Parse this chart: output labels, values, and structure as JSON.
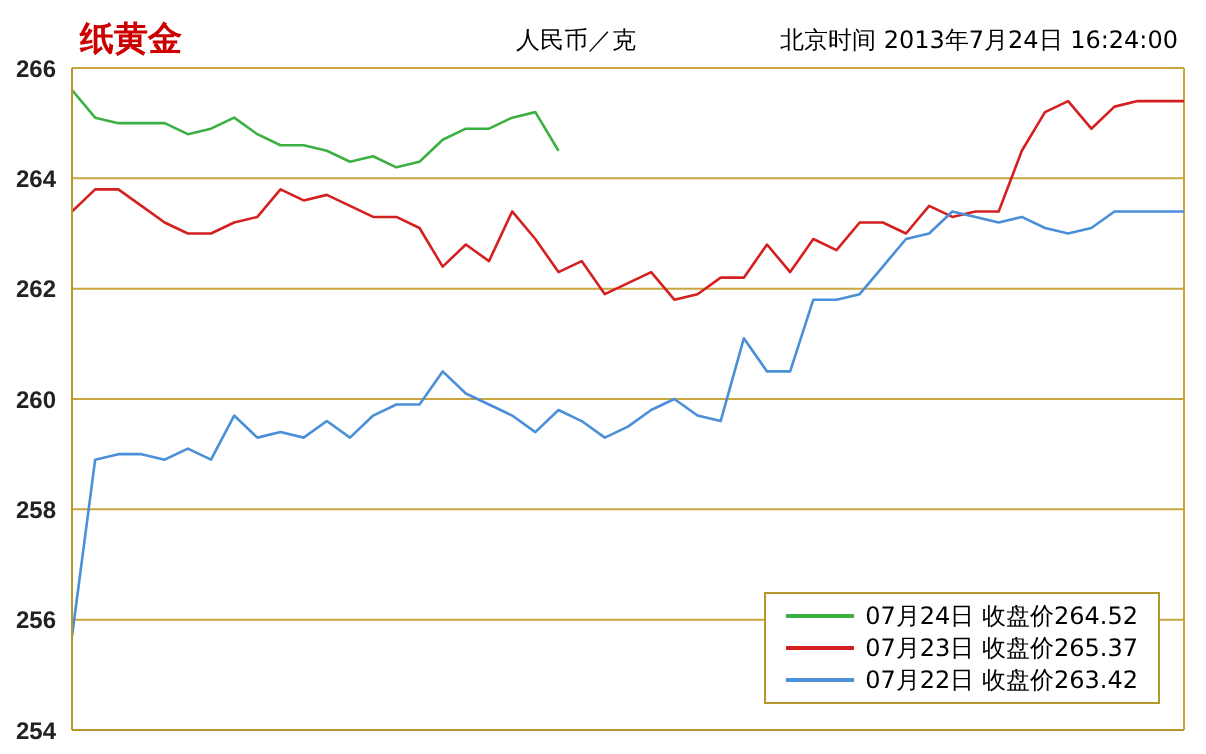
{
  "chart_data": {
    "type": "line",
    "title": "纸黄金",
    "ylabel": "人民币／克",
    "annotations": [
      "北京时间 2013年7月24日 16:24:00"
    ],
    "categories": [
      null,
      null,
      null,
      null,
      null,
      null,
      null,
      null,
      null,
      null,
      null,
      null,
      null,
      null,
      null,
      null,
      null,
      null,
      null,
      null,
      null,
      null,
      null,
      null,
      null,
      null,
      null,
      null,
      null,
      null,
      null,
      null,
      null,
      null,
      null,
      null,
      null,
      null,
      null,
      null,
      null,
      null,
      null,
      null,
      null,
      null,
      null,
      null,
      null
    ],
    "ylim": [
      254,
      266
    ],
    "yticks": [
      254,
      256,
      258,
      260,
      262,
      264,
      266
    ],
    "grid": true,
    "tick_labels": "y",
    "legend": "bottom right",
    "marker": "none",
    "line_style": "solid",
    "series": [
      {
        "name": "07月24日 收盘价264.52",
        "color": "#3cb043",
        "values": [
          265.6,
          265.1,
          265.0,
          265.0,
          265.0,
          264.8,
          264.9,
          265.1,
          264.8,
          264.6,
          264.6,
          264.5,
          264.3,
          264.4,
          264.2,
          264.3,
          264.7,
          264.9,
          264.9,
          265.1,
          265.2,
          264.5,
          null,
          null,
          null,
          null,
          null,
          null,
          null,
          null,
          null,
          null,
          null,
          null,
          null,
          null,
          null,
          null,
          null,
          null,
          null,
          null,
          null,
          null,
          null,
          null,
          null,
          null,
          null
        ]
      },
      {
        "name": "07月23日 收盘价265.37",
        "color": "#d42020",
        "values": [
          263.4,
          263.8,
          263.8,
          263.5,
          263.2,
          263.0,
          263.0,
          263.2,
          263.3,
          263.8,
          263.6,
          263.7,
          263.5,
          263.3,
          263.3,
          263.1,
          262.4,
          262.8,
          262.5,
          263.4,
          262.9,
          262.3,
          262.5,
          261.9,
          262.1,
          262.3,
          261.8,
          261.9,
          262.2,
          262.2,
          262.8,
          262.3,
          262.9,
          262.7,
          263.2,
          263.2,
          263.0,
          263.5,
          263.3,
          263.4,
          263.4,
          264.5,
          265.2,
          265.4,
          264.9,
          265.3,
          265.4,
          265.4,
          265.4
        ]
      },
      {
        "name": "07月22日 收盘价263.42",
        "color": "#4a8fd8",
        "values": [
          255.7,
          258.9,
          259.0,
          259.0,
          258.9,
          259.1,
          258.9,
          259.7,
          259.3,
          259.4,
          259.3,
          259.6,
          259.3,
          259.7,
          259.9,
          259.9,
          260.5,
          260.1,
          259.9,
          259.7,
          259.4,
          259.8,
          259.6,
          259.3,
          259.5,
          259.8,
          260.0,
          259.7,
          259.6,
          261.1,
          260.5,
          260.5,
          261.8,
          261.8,
          261.9,
          262.4,
          262.9,
          263.0,
          263.4,
          263.3,
          263.2,
          263.3,
          263.1,
          263.0,
          263.1,
          263.4,
          263.4,
          263.4,
          263.4
        ]
      }
    ]
  }
}
